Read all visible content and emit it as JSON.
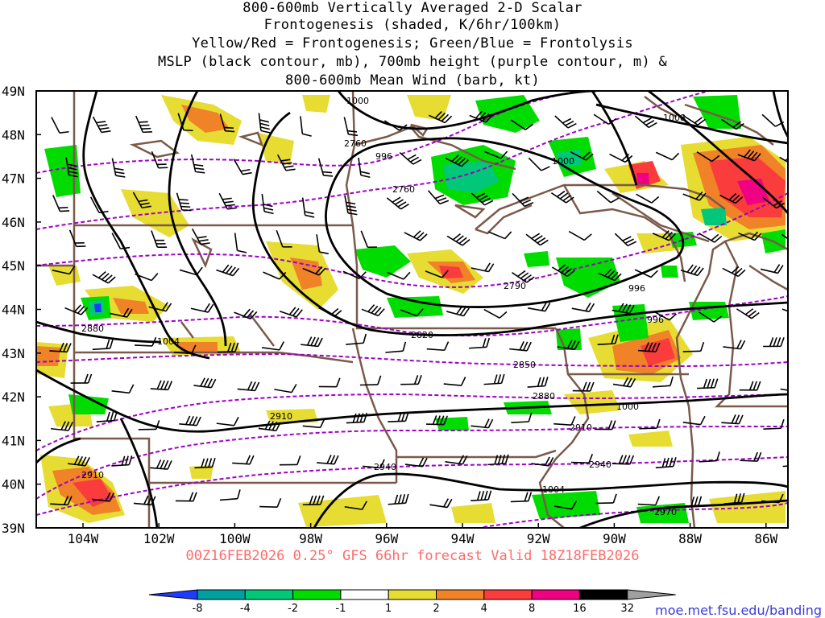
{
  "title": {
    "line1": "800-600mb Vertically Averaged 2-D Scalar",
    "line2": "Frontogenesis (shaded, K/6hr/100km)",
    "line3": "Yellow/Red = Frontogenesis;  Green/Blue = Frontolysis",
    "line4": "MSLP (black contour, mb), 700mb height (purple contour, m) &",
    "line5": "800-600mb Mean Wind (barb, kt)"
  },
  "footer": "00Z16FEB2026 0.25° GFS 66hr forecast Valid 18Z18FEB2026",
  "credit": "moe.met.fsu.edu/banding",
  "lat_labels": [
    "49N",
    "48N",
    "47N",
    "46N",
    "45N",
    "44N",
    "43N",
    "42N",
    "41N",
    "40N",
    "39N"
  ],
  "lon_labels": [
    "104W",
    "102W",
    "100W",
    "98W",
    "96W",
    "94W",
    "92W",
    "90W",
    "88W",
    "86W"
  ],
  "mslp_labels": [
    "1000",
    "1008",
    "996",
    "1000",
    "996",
    "996",
    "1004",
    "1000",
    "1004"
  ],
  "height_labels": [
    "2760",
    "2760",
    "2790",
    "2820",
    "2850",
    "2880",
    "2880",
    "2910",
    "2910",
    "2940",
    "2910",
    "2940",
    "2970"
  ],
  "colorbar": {
    "ticks": [
      "-8",
      "-4",
      "-2",
      "-1",
      "1",
      "2",
      "4",
      "8",
      "16",
      "32"
    ],
    "colors": [
      "#1e3cff",
      "#00a0a0",
      "#00c878",
      "#00dc00",
      "#ffffff",
      "#e6dc32",
      "#f08228",
      "#fa3c3c",
      "#f00082",
      "#000000",
      "#a0a0a0"
    ]
  },
  "colors": {
    "mslp": "#000000",
    "height": "#a000c8",
    "border": "#7a5a4a",
    "frontogenesis_weak": "#e6dc32",
    "frontogenesis_mod": "#f08228",
    "frontogenesis_strong": "#fa3c3c",
    "frontogenesis_extreme": "#f00082",
    "frontolysis": "#00dc00",
    "frontolysis_mod": "#00c878"
  }
}
